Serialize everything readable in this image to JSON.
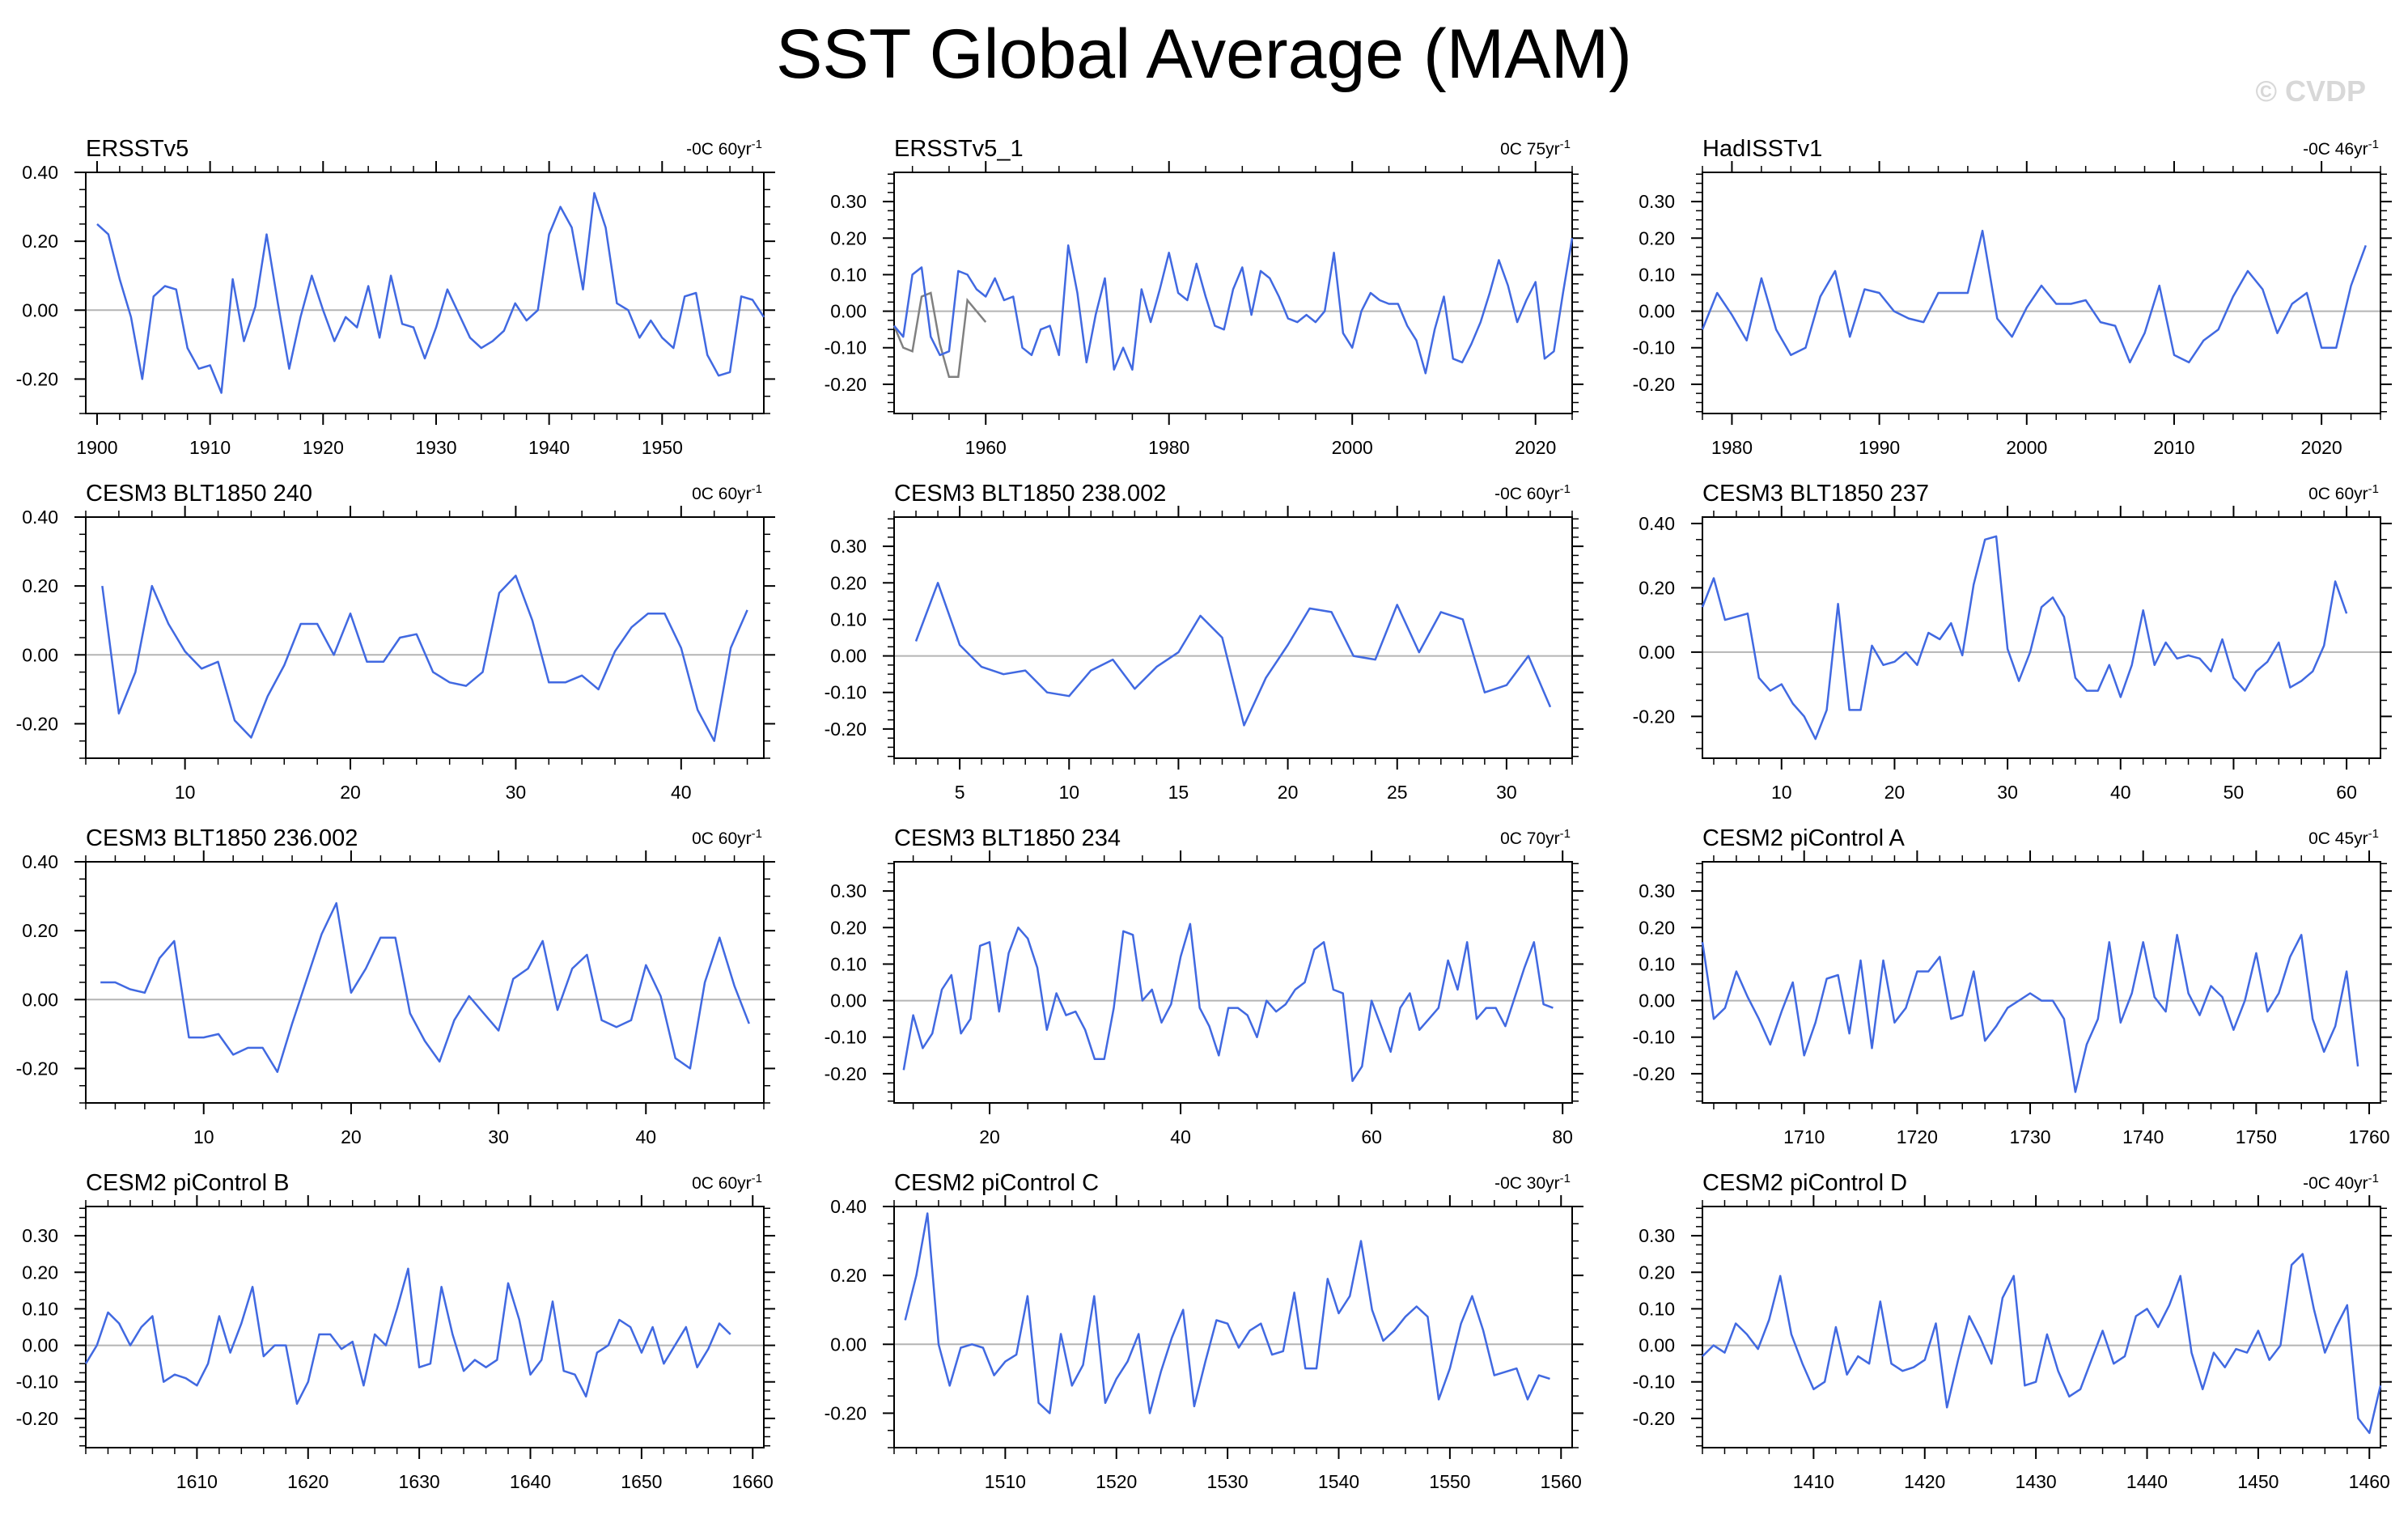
{
  "title": "SST Global Average (MAM)",
  "watermark": "© CVDP",
  "colors": {
    "series": "#4169e1",
    "obs_overlay": "#808080",
    "zero_line": "#b4b4b4",
    "axis": "#000000"
  },
  "chart_data": [
    {
      "type": "line",
      "title": "ERSSTv5",
      "trend": "-0C 60yr",
      "trend_unit": "-1",
      "xlim": [
        1899,
        1959
      ],
      "ylim": [
        -0.3,
        0.4
      ],
      "xticks": [
        1900,
        1910,
        1920,
        1930,
        1940,
        1950
      ],
      "yticks": [
        -0.2,
        0.0,
        0.2,
        0.4
      ],
      "ytick_labels": [
        "-0.20",
        "0.00",
        "0.20",
        "0.40"
      ],
      "x_start": 1900,
      "values": [
        0.25,
        0.22,
        0.09,
        -0.02,
        -0.2,
        0.04,
        0.07,
        0.06,
        -0.11,
        -0.17,
        -0.16,
        -0.24,
        0.09,
        -0.09,
        0.01,
        0.22,
        0.02,
        -0.17,
        -0.02,
        0.1,
        0.0,
        -0.09,
        -0.02,
        -0.05,
        0.07,
        -0.08,
        0.1,
        -0.04,
        -0.05,
        -0.14,
        -0.05,
        0.06,
        -0.01,
        -0.08,
        -0.11,
        -0.09,
        -0.06,
        0.02,
        -0.03,
        0.0,
        0.22,
        0.3,
        0.24,
        0.06,
        0.34,
        0.24,
        0.02,
        0.0,
        -0.08,
        -0.03,
        -0.08,
        -0.11,
        0.04,
        0.05,
        -0.13,
        -0.19,
        -0.18,
        0.04,
        0.03,
        -0.02
      ]
    },
    {
      "type": "line",
      "title": "ERSSTv5_1",
      "trend": "0C 75yr",
      "trend_unit": "-1",
      "xlim": [
        1950,
        2024
      ],
      "ylim": [
        -0.28,
        0.38
      ],
      "xticks": [
        1960,
        1980,
        2000,
        2020
      ],
      "yticks": [
        -0.2,
        -0.1,
        0.0,
        0.1,
        0.2,
        0.3
      ],
      "ytick_labels": [
        "-0.20",
        "-0.10",
        "0.00",
        "0.10",
        "0.20",
        "0.30"
      ],
      "x_start": 1950,
      "values": [
        -0.04,
        -0.07,
        0.1,
        0.12,
        -0.07,
        -0.12,
        -0.11,
        0.11,
        0.1,
        0.06,
        0.04,
        0.09,
        0.03,
        0.04,
        -0.1,
        -0.12,
        -0.05,
        -0.04,
        -0.12,
        0.18,
        0.05,
        -0.14,
        -0.01,
        0.09,
        -0.16,
        -0.1,
        -0.16,
        0.06,
        -0.03,
        0.06,
        0.16,
        0.05,
        0.03,
        0.13,
        0.04,
        -0.04,
        -0.05,
        0.06,
        0.12,
        -0.01,
        0.11,
        0.09,
        0.04,
        -0.02,
        -0.03,
        -0.01,
        -0.03,
        0.0,
        0.16,
        -0.06,
        -0.1,
        0.0,
        0.05,
        0.03,
        0.02,
        0.02,
        -0.04,
        -0.08,
        -0.17,
        -0.05,
        0.04,
        -0.13,
        -0.14,
        -0.09,
        -0.03,
        0.05,
        0.14,
        0.07,
        -0.03,
        0.03,
        0.08,
        -0.13,
        -0.11,
        0.05,
        0.2
      ],
      "overlay_x_start": 1950,
      "overlay_values": [
        -0.04,
        -0.1,
        -0.11,
        0.04,
        0.05,
        -0.09,
        -0.18,
        -0.18,
        0.03,
        0.0,
        -0.03
      ]
    },
    {
      "type": "line",
      "title": "HadISSTv1",
      "trend": "-0C 46yr",
      "trend_unit": "-1",
      "xlim": [
        1978,
        2024
      ],
      "ylim": [
        -0.28,
        0.38
      ],
      "xticks": [
        1980,
        1990,
        2000,
        2010,
        2020
      ],
      "yticks": [
        -0.2,
        -0.1,
        0.0,
        0.1,
        0.2,
        0.3
      ],
      "ytick_labels": [
        "-0.20",
        "-0.10",
        "0.00",
        "0.10",
        "0.20",
        "0.30"
      ],
      "x_start": 1978,
      "values": [
        -0.05,
        0.05,
        -0.01,
        -0.08,
        0.09,
        -0.05,
        -0.12,
        -0.1,
        0.04,
        0.11,
        -0.07,
        0.06,
        0.05,
        0.0,
        -0.02,
        -0.03,
        0.05,
        0.05,
        0.05,
        0.22,
        -0.02,
        -0.07,
        0.01,
        0.07,
        0.02,
        0.02,
        0.03,
        -0.03,
        -0.04,
        -0.14,
        -0.06,
        0.07,
        -0.12,
        -0.14,
        -0.08,
        -0.05,
        0.04,
        0.11,
        0.06,
        -0.06,
        0.02,
        0.05,
        -0.1,
        -0.1,
        0.07,
        0.18
      ]
    },
    {
      "type": "line",
      "title": "CESM3 BLT1850 240",
      "trend": "0C 60yr",
      "trend_unit": "-1",
      "xlim": [
        4,
        45
      ],
      "ylim": [
        -0.3,
        0.4
      ],
      "xticks": [
        10,
        20,
        30,
        40
      ],
      "yticks": [
        -0.2,
        0.0,
        0.2,
        0.4
      ],
      "ytick_labels": [
        "-0.20",
        "0.00",
        "0.20",
        "0.40"
      ],
      "x_start": 5,
      "values": [
        0.2,
        -0.17,
        -0.05,
        0.2,
        0.09,
        0.01,
        -0.04,
        -0.02,
        -0.19,
        -0.24,
        -0.12,
        -0.03,
        0.09,
        0.09,
        0.0,
        0.12,
        -0.02,
        -0.02,
        0.05,
        0.06,
        -0.05,
        -0.08,
        -0.09,
        -0.05,
        0.18,
        0.23,
        0.1,
        -0.08,
        -0.08,
        -0.06,
        -0.1,
        0.01,
        0.08,
        0.12,
        0.12,
        0.02,
        -0.16,
        -0.25,
        0.02,
        0.13
      ]
    },
    {
      "type": "line",
      "title": "CESM3 BLT1850 238.002",
      "trend": "-0C 60yr",
      "trend_unit": "-1",
      "xlim": [
        2,
        33
      ],
      "ylim": [
        -0.28,
        0.38
      ],
      "xticks": [
        5,
        10,
        15,
        20,
        25,
        30
      ],
      "yticks": [
        -0.2,
        -0.1,
        0.0,
        0.1,
        0.2,
        0.3
      ],
      "ytick_labels": [
        "-0.20",
        "-0.10",
        "0.00",
        "0.10",
        "0.20",
        "0.30"
      ],
      "x_start": 3,
      "values": [
        0.04,
        0.2,
        0.03,
        -0.03,
        -0.05,
        -0.04,
        -0.1,
        -0.11,
        -0.04,
        -0.01,
        -0.09,
        -0.03,
        0.01,
        0.11,
        0.05,
        -0.19,
        -0.06,
        0.03,
        0.13,
        0.12,
        0.0,
        -0.01,
        0.14,
        0.01,
        0.12,
        0.1,
        -0.1,
        -0.08,
        0.0,
        -0.14
      ]
    },
    {
      "type": "line",
      "title": "CESM3 BLT1850 237",
      "trend": "0C 60yr",
      "trend_unit": "-1",
      "xlim": [
        3,
        63
      ],
      "ylim": [
        -0.33,
        0.42
      ],
      "xticks": [
        10,
        20,
        30,
        40,
        50,
        60
      ],
      "yticks": [
        -0.2,
        0.0,
        0.2,
        0.4
      ],
      "ytick_labels": [
        "-0.20",
        "0.00",
        "0.20",
        "0.40"
      ],
      "x_start": 3,
      "values": [
        0.14,
        0.23,
        0.1,
        0.11,
        0.12,
        -0.08,
        -0.12,
        -0.1,
        -0.16,
        -0.2,
        -0.27,
        -0.18,
        0.15,
        -0.18,
        -0.18,
        0.02,
        -0.04,
        -0.03,
        0.0,
        -0.04,
        0.06,
        0.04,
        0.09,
        -0.01,
        0.21,
        0.35,
        0.36,
        0.01,
        -0.09,
        0.0,
        0.14,
        0.17,
        0.11,
        -0.08,
        -0.12,
        -0.12,
        -0.04,
        -0.14,
        -0.04,
        0.13,
        -0.04,
        0.03,
        -0.02,
        -0.01,
        -0.02,
        -0.06,
        0.04,
        -0.08,
        -0.12,
        -0.06,
        -0.03,
        0.03,
        -0.11,
        -0.09,
        -0.06,
        0.02,
        0.22,
        0.12
      ]
    },
    {
      "type": "line",
      "title": "CESM3 BLT1850 236.002",
      "trend": "0C 60yr",
      "trend_unit": "-1",
      "xlim": [
        2,
        48
      ],
      "ylim": [
        -0.3,
        0.4
      ],
      "xticks": [
        10,
        20,
        30,
        40
      ],
      "yticks": [
        -0.2,
        0.0,
        0.2,
        0.4
      ],
      "ytick_labels": [
        "-0.20",
        "0.00",
        "0.20",
        "0.40"
      ],
      "x_start": 3,
      "values": [
        0.05,
        0.05,
        0.03,
        0.02,
        0.12,
        0.17,
        -0.11,
        -0.11,
        -0.1,
        -0.16,
        -0.14,
        -0.14,
        -0.21,
        -0.07,
        0.06,
        0.19,
        0.28,
        0.02,
        0.09,
        0.18,
        0.18,
        -0.04,
        -0.12,
        -0.18,
        -0.06,
        0.01,
        -0.04,
        -0.09,
        0.06,
        0.09,
        0.17,
        -0.03,
        0.09,
        0.13,
        -0.06,
        -0.08,
        -0.06,
        0.1,
        0.01,
        -0.17,
        -0.2,
        0.05,
        0.18,
        0.04,
        -0.07
      ]
    },
    {
      "type": "line",
      "title": "CESM3 BLT1850 234",
      "trend": "0C 70yr",
      "trend_unit": "-1",
      "xlim": [
        10,
        81
      ],
      "ylim": [
        -0.28,
        0.38
      ],
      "xticks": [
        20,
        40,
        60,
        80
      ],
      "yticks": [
        -0.2,
        -0.1,
        0.0,
        0.1,
        0.2,
        0.3
      ],
      "ytick_labels": [
        "-0.20",
        "-0.10",
        "0.00",
        "0.10",
        "0.20",
        "0.30"
      ],
      "x_start": 11,
      "values": [
        -0.19,
        -0.04,
        -0.13,
        -0.09,
        0.03,
        0.07,
        -0.09,
        -0.05,
        0.15,
        0.16,
        -0.03,
        0.13,
        0.2,
        0.17,
        0.09,
        -0.08,
        0.02,
        -0.04,
        -0.03,
        -0.08,
        -0.16,
        -0.16,
        -0.02,
        0.19,
        0.18,
        0.0,
        0.03,
        -0.06,
        -0.01,
        0.12,
        0.21,
        -0.02,
        -0.07,
        -0.15,
        -0.02,
        -0.02,
        -0.04,
        -0.1,
        0.0,
        -0.03,
        -0.01,
        0.03,
        0.05,
        0.14,
        0.16,
        0.03,
        0.02,
        -0.22,
        -0.18,
        0.0,
        -0.07,
        -0.14,
        -0.02,
        0.02,
        -0.08,
        -0.05,
        -0.02,
        0.11,
        0.03,
        0.16,
        -0.05,
        -0.02,
        -0.02,
        -0.07,
        0.01,
        0.09,
        0.16,
        -0.01,
        -0.02
      ]
    },
    {
      "type": "line",
      "title": "CESM2 piControl A",
      "trend": "0C 45yr",
      "trend_unit": "-1",
      "xlim": [
        1701,
        1761
      ],
      "ylim": [
        -0.28,
        0.38
      ],
      "xticks": [
        1710,
        1720,
        1730,
        1740,
        1750,
        1760
      ],
      "yticks": [
        -0.2,
        -0.1,
        0.0,
        0.1,
        0.2,
        0.3
      ],
      "ytick_labels": [
        "-0.20",
        "-0.10",
        "0.00",
        "0.10",
        "0.20",
        "0.30"
      ],
      "x_start": 1701,
      "values": [
        0.16,
        -0.05,
        -0.02,
        0.08,
        0.01,
        -0.05,
        -0.12,
        -0.03,
        0.05,
        -0.15,
        -0.06,
        0.06,
        0.07,
        -0.09,
        0.11,
        -0.13,
        0.11,
        -0.06,
        -0.02,
        0.08,
        0.08,
        0.12,
        -0.05,
        -0.04,
        0.08,
        -0.11,
        -0.07,
        -0.02,
        0.0,
        0.02,
        0.0,
        0.0,
        -0.05,
        -0.25,
        -0.12,
        -0.05,
        0.16,
        -0.06,
        0.02,
        0.16,
        0.01,
        -0.03,
        0.18,
        0.02,
        -0.04,
        0.04,
        0.01,
        -0.08,
        0.0,
        0.13,
        -0.03,
        0.02,
        0.12,
        0.18,
        -0.05,
        -0.14,
        -0.07,
        0.08,
        -0.18
      ]
    },
    {
      "type": "line",
      "title": "CESM2 piControl B",
      "trend": "0C 60yr",
      "trend_unit": "-1",
      "xlim": [
        1600,
        1661
      ],
      "ylim": [
        -0.28,
        0.38
      ],
      "xticks": [
        1610,
        1620,
        1630,
        1640,
        1650,
        1660
      ],
      "yticks": [
        -0.2,
        -0.1,
        0.0,
        0.1,
        0.2,
        0.3
      ],
      "ytick_labels": [
        "-0.20",
        "-0.10",
        "0.00",
        "0.10",
        "0.20",
        "0.30"
      ],
      "x_start": 1600,
      "values": [
        -0.05,
        0.0,
        0.09,
        0.06,
        0.0,
        0.05,
        0.08,
        -0.1,
        -0.08,
        -0.09,
        -0.11,
        -0.05,
        0.08,
        -0.02,
        0.06,
        0.16,
        -0.03,
        0.0,
        0.0,
        -0.16,
        -0.1,
        0.03,
        0.03,
        -0.01,
        0.01,
        -0.11,
        0.03,
        0.0,
        0.1,
        0.21,
        -0.06,
        -0.05,
        0.16,
        0.03,
        -0.07,
        -0.04,
        -0.06,
        -0.04,
        0.17,
        0.07,
        -0.08,
        -0.04,
        0.12,
        -0.07,
        -0.08,
        -0.14,
        -0.02,
        0.0,
        0.07,
        0.05,
        -0.02,
        0.05,
        -0.05,
        0.0,
        0.05,
        -0.06,
        -0.01,
        0.06,
        0.03
      ]
    },
    {
      "type": "line",
      "title": "CESM2 piControl C",
      "trend": "-0C 30yr",
      "trend_unit": "-1",
      "xlim": [
        1500,
        1561
      ],
      "ylim": [
        -0.3,
        0.4
      ],
      "xticks": [
        1510,
        1520,
        1530,
        1540,
        1550,
        1560
      ],
      "yticks": [
        -0.2,
        0.0,
        0.2,
        0.4
      ],
      "ytick_labels": [
        "-0.20",
        "0.00",
        "0.20",
        "0.40"
      ],
      "x_start": 1501,
      "values": [
        0.07,
        0.2,
        0.38,
        0.0,
        -0.12,
        -0.01,
        0.0,
        -0.01,
        -0.09,
        -0.05,
        -0.03,
        0.14,
        -0.17,
        -0.2,
        0.03,
        -0.12,
        -0.06,
        0.14,
        -0.17,
        -0.1,
        -0.05,
        0.03,
        -0.2,
        -0.08,
        0.02,
        0.1,
        -0.18,
        -0.05,
        0.07,
        0.06,
        -0.01,
        0.04,
        0.06,
        -0.03,
        -0.02,
        0.15,
        -0.07,
        -0.07,
        0.19,
        0.09,
        0.14,
        0.3,
        0.1,
        0.01,
        0.04,
        0.08,
        0.11,
        0.08,
        -0.16,
        -0.07,
        0.06,
        0.14,
        0.04,
        -0.09,
        -0.08,
        -0.07,
        -0.16,
        -0.09,
        -0.1
      ]
    },
    {
      "type": "line",
      "title": "CESM2 piControl D",
      "trend": "-0C 40yr",
      "trend_unit": "-1",
      "xlim": [
        1400,
        1461
      ],
      "ylim": [
        -0.28,
        0.38
      ],
      "xticks": [
        1410,
        1420,
        1430,
        1440,
        1450,
        1460
      ],
      "yticks": [
        -0.2,
        -0.1,
        0.0,
        0.1,
        0.2,
        0.3
      ],
      "ytick_labels": [
        "-0.20",
        "-0.10",
        "0.00",
        "0.10",
        "0.20",
        "0.30"
      ],
      "x_start": 1400,
      "values": [
        -0.03,
        0.0,
        -0.02,
        0.06,
        0.03,
        -0.01,
        0.07,
        0.19,
        0.03,
        -0.05,
        -0.12,
        -0.1,
        0.05,
        -0.08,
        -0.03,
        -0.05,
        0.12,
        -0.05,
        -0.07,
        -0.06,
        -0.04,
        0.06,
        -0.17,
        -0.04,
        0.08,
        0.02,
        -0.05,
        0.13,
        0.19,
        -0.11,
        -0.1,
        0.03,
        -0.07,
        -0.14,
        -0.12,
        -0.04,
        0.04,
        -0.05,
        -0.03,
        0.08,
        0.1,
        0.05,
        0.11,
        0.19,
        -0.02,
        -0.12,
        -0.02,
        -0.06,
        -0.01,
        -0.02,
        0.04,
        -0.04,
        0.0,
        0.22,
        0.25,
        0.1,
        -0.02,
        0.05,
        0.11,
        -0.2,
        -0.24,
        -0.11
      ]
    }
  ]
}
